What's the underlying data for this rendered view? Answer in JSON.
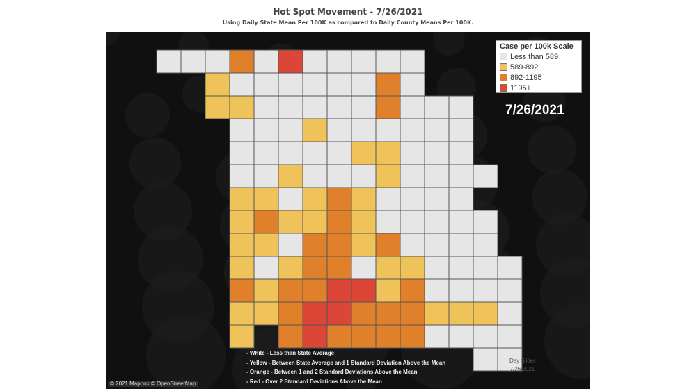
{
  "title": "Hot Spot Movement  - 7/26/2021",
  "subtitle": "Using Daily State Mean Per 100K as compared to Daily County Means Per 100K.",
  "legend": {
    "title": "Case per 100k Scale",
    "items": [
      {
        "label": "Less than 589",
        "color": "#e6e6e6"
      },
      {
        "label": "589-892",
        "color": "#f0c35a"
      },
      {
        "label": "892-1195",
        "color": "#e0802a"
      },
      {
        "label": "1195+",
        "color": "#dc4636"
      }
    ]
  },
  "date_label": "7/26/2021",
  "notes": [
    "- White - Less than State Average",
    "- Yellow - Between State Average and 1 Standard Deviation Above the Mean",
    "- Orange - Between 1 and 2 Standard Deviations Above the Mean",
    "- Red - Over 2 Standard Deviations Above the Mean"
  ],
  "credit": "© 2021 Mapbox © OpenStreetMap",
  "slider": {
    "label": "Day Slider",
    "value": "7/26/2021"
  },
  "county_categories": [
    "wwwowrwwwww.....",
    "..ywwwwwwow.....",
    "..yywwwwwowww...",
    "...wwwywwwwww...",
    "...wwwwwyywww...",
    "...wwywwwywwww..",
    "...yywyoywwww...",
    "...yoyyoywwwww..",
    "...yywooyowwww..",
    "...ywyoowyywwww.",
    "...oyoorryowwww.",
    "...yyorroooyyyw.",
    "...y.oroooowwww.",
    ".............ww."
  ]
}
